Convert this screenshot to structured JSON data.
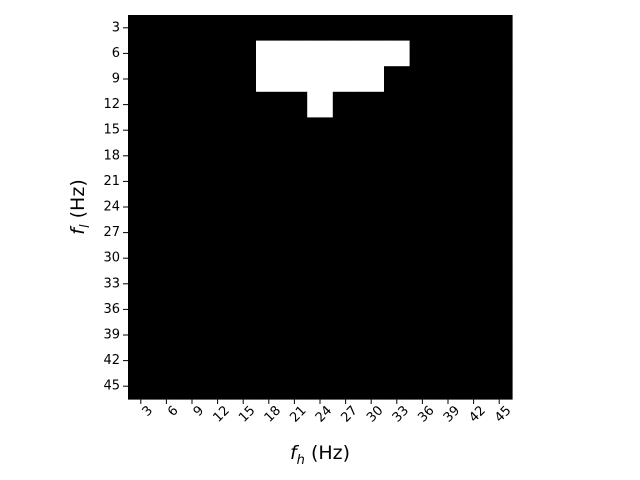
{
  "chart_data": {
    "type": "heatmap",
    "xlabel": {
      "main": "f",
      "sub": "h",
      "unit": " (Hz)"
    },
    "ylabel": {
      "main": "f",
      "sub": "l",
      "unit": " (Hz)"
    },
    "x_ticks": [
      "3",
      "6",
      "9",
      "12",
      "15",
      "18",
      "21",
      "24",
      "27",
      "30",
      "33",
      "36",
      "39",
      "42",
      "45"
    ],
    "y_ticks": [
      "3",
      "6",
      "9",
      "12",
      "15",
      "18",
      "21",
      "24",
      "27",
      "30",
      "33",
      "36",
      "39",
      "42",
      "45"
    ],
    "colors": {
      "0": "#000000",
      "1": "#ffffff"
    },
    "values": [
      [
        0,
        0,
        0,
        0,
        0,
        0,
        0,
        0,
        0,
        0,
        0,
        0,
        0,
        0,
        0
      ],
      [
        0,
        0,
        0,
        0,
        0,
        1,
        1,
        1,
        1,
        1,
        1,
        0,
        0,
        0,
        0
      ],
      [
        0,
        0,
        0,
        0,
        0,
        1,
        1,
        1,
        1,
        1,
        0,
        0,
        0,
        0,
        0
      ],
      [
        0,
        0,
        0,
        0,
        0,
        0,
        0,
        1,
        0,
        0,
        0,
        0,
        0,
        0,
        0
      ],
      [
        0,
        0,
        0,
        0,
        0,
        0,
        0,
        0,
        0,
        0,
        0,
        0,
        0,
        0,
        0
      ],
      [
        0,
        0,
        0,
        0,
        0,
        0,
        0,
        0,
        0,
        0,
        0,
        0,
        0,
        0,
        0
      ],
      [
        0,
        0,
        0,
        0,
        0,
        0,
        0,
        0,
        0,
        0,
        0,
        0,
        0,
        0,
        0
      ],
      [
        0,
        0,
        0,
        0,
        0,
        0,
        0,
        0,
        0,
        0,
        0,
        0,
        0,
        0,
        0
      ],
      [
        0,
        0,
        0,
        0,
        0,
        0,
        0,
        0,
        0,
        0,
        0,
        0,
        0,
        0,
        0
      ],
      [
        0,
        0,
        0,
        0,
        0,
        0,
        0,
        0,
        0,
        0,
        0,
        0,
        0,
        0,
        0
      ],
      [
        0,
        0,
        0,
        0,
        0,
        0,
        0,
        0,
        0,
        0,
        0,
        0,
        0,
        0,
        0
      ],
      [
        0,
        0,
        0,
        0,
        0,
        0,
        0,
        0,
        0,
        0,
        0,
        0,
        0,
        0,
        0
      ],
      [
        0,
        0,
        0,
        0,
        0,
        0,
        0,
        0,
        0,
        0,
        0,
        0,
        0,
        0,
        0
      ],
      [
        0,
        0,
        0,
        0,
        0,
        0,
        0,
        0,
        0,
        0,
        0,
        0,
        0,
        0,
        0
      ],
      [
        0,
        0,
        0,
        0,
        0,
        0,
        0,
        0,
        0,
        0,
        0,
        0,
        0,
        0,
        0
      ]
    ]
  }
}
